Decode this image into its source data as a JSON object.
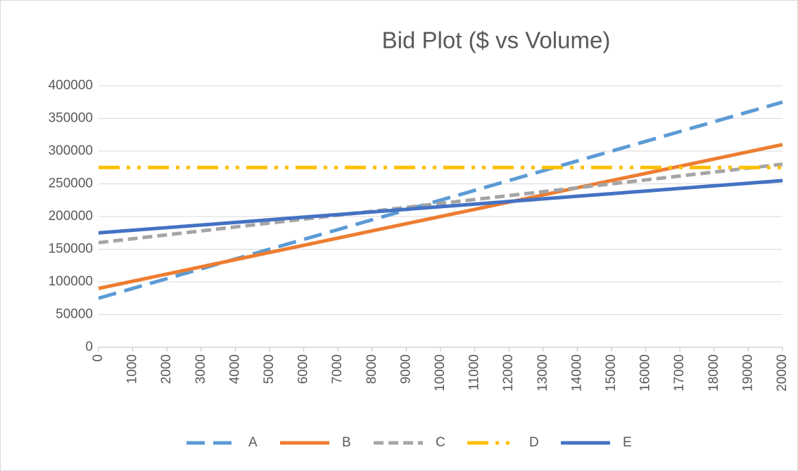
{
  "chart_data": {
    "type": "line",
    "title": "Bid Plot ($ vs Volume)",
    "x": [
      0,
      1000,
      2000,
      3000,
      4000,
      5000,
      6000,
      7000,
      8000,
      9000,
      10000,
      11000,
      12000,
      13000,
      14000,
      15000,
      16000,
      17000,
      18000,
      19000,
      20000
    ],
    "xlim": [
      0,
      20000
    ],
    "xticks": [
      0,
      1000,
      2000,
      3000,
      4000,
      5000,
      6000,
      7000,
      8000,
      9000,
      10000,
      11000,
      12000,
      13000,
      14000,
      15000,
      16000,
      17000,
      18000,
      19000,
      20000
    ],
    "ylim": [
      0,
      400000
    ],
    "yticks": [
      0,
      50000,
      100000,
      150000,
      200000,
      250000,
      300000,
      350000,
      400000
    ],
    "grid": true,
    "legend": "bottom",
    "series": [
      {
        "name": "A",
        "color": "#5b9bd5",
        "line_style": "long-dash",
        "values": [
          75000,
          90000,
          105000,
          120000,
          135000,
          150000,
          165000,
          180000,
          195000,
          210000,
          225000,
          240000,
          255000,
          270000,
          285000,
          300000,
          315000,
          330000,
          345000,
          360000,
          375000
        ]
      },
      {
        "name": "B",
        "color": "#ed7d31",
        "line_style": "solid",
        "values": [
          90000,
          101000,
          112000,
          123000,
          134000,
          145000,
          156000,
          167000,
          178000,
          189000,
          200000,
          211000,
          222000,
          233000,
          244000,
          255000,
          266000,
          277000,
          288000,
          299000,
          310000
        ]
      },
      {
        "name": "C",
        "color": "#a5a5a5",
        "line_style": "dash",
        "values": [
          160000,
          166000,
          172000,
          178000,
          184000,
          190000,
          196000,
          202000,
          208000,
          214000,
          220000,
          226000,
          232000,
          238000,
          244000,
          250000,
          256000,
          262000,
          268000,
          274000,
          280000
        ]
      },
      {
        "name": "D",
        "color": "#ffc000",
        "line_style": "long-dash-dot-dot",
        "values": [
          275000,
          275000,
          275000,
          275000,
          275000,
          275000,
          275000,
          275000,
          275000,
          275000,
          275000,
          275000,
          275000,
          275000,
          275000,
          275000,
          275000,
          275000,
          275000,
          275000,
          275000
        ]
      },
      {
        "name": "E",
        "color": "#4472c4",
        "line_style": "solid",
        "values": [
          175000,
          179000,
          183000,
          187000,
          191000,
          195000,
          199000,
          203000,
          207000,
          211000,
          215000,
          219000,
          223000,
          227000,
          231000,
          235000,
          239000,
          243000,
          247000,
          251000,
          255000
        ]
      }
    ]
  }
}
